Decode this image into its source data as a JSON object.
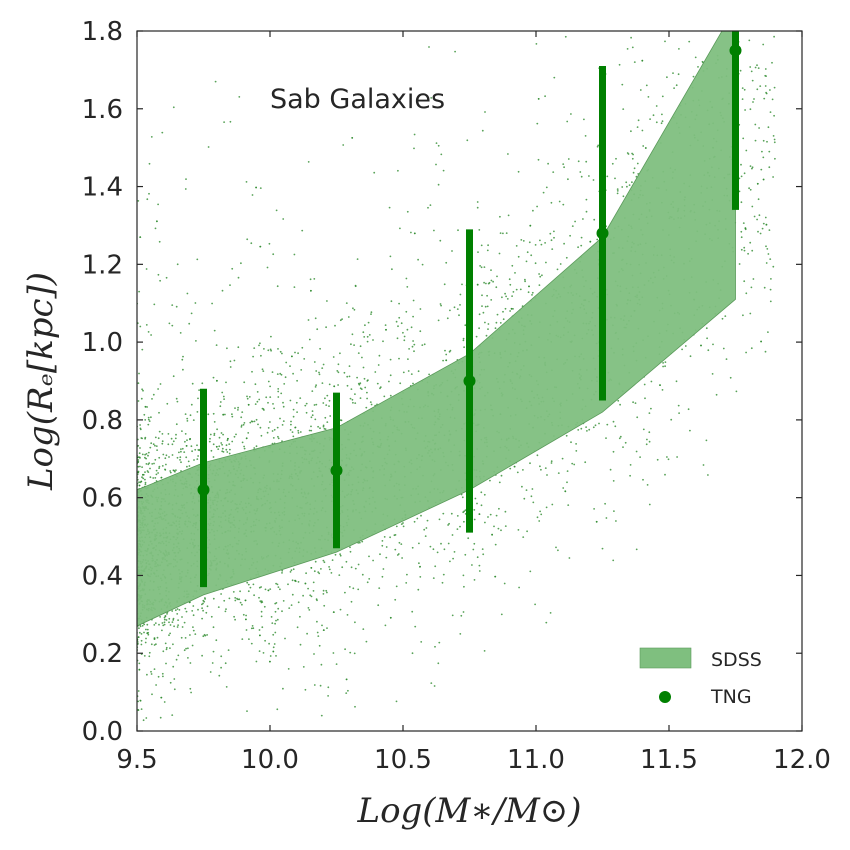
{
  "chart_data": {
    "type": "scatter",
    "title": "",
    "annotation": "Sab Galaxies",
    "xlabel": "Log(M∗/M⊙)",
    "ylabel": "Log(Rₑ[kpc])",
    "xlim": [
      9.5,
      12.0
    ],
    "ylim": [
      0.0,
      1.8
    ],
    "x_ticks": [
      "9.5",
      "10.0",
      "10.5",
      "11.0",
      "11.5",
      "12.0"
    ],
    "y_ticks": [
      "0.0",
      "0.2",
      "0.4",
      "0.6",
      "0.8",
      "1.0",
      "1.2",
      "1.4",
      "1.6",
      "1.8"
    ],
    "grid": false,
    "legend_position": "bottom-right",
    "colors": {
      "band_fill": "#7fbf7f",
      "band_edge": "#5a9a5a",
      "points": "#008000",
      "scatter_points": "#2e8b2e",
      "axes": "#262626"
    },
    "series": [
      {
        "name": "SDSS",
        "kind": "band",
        "x": [
          9.5,
          9.75,
          10.25,
          10.75,
          11.25,
          11.75
        ],
        "lower": [
          0.27,
          0.35,
          0.46,
          0.62,
          0.82,
          1.11
        ],
        "upper": [
          0.62,
          0.69,
          0.78,
          0.97,
          1.27,
          1.86
        ]
      },
      {
        "name": "TNG",
        "kind": "errorbar",
        "x": [
          9.75,
          10.25,
          10.75,
          11.25,
          11.75
        ],
        "y": [
          0.62,
          0.67,
          0.9,
          1.28,
          1.75
        ],
        "y_low": [
          0.37,
          0.47,
          0.51,
          0.85,
          1.34
        ],
        "y_high": [
          0.88,
          0.87,
          1.29,
          1.71,
          1.8
        ]
      },
      {
        "kind": "scatter",
        "count": 4200,
        "description_of_distribution": "dense cloud of simulated galaxy points following the band, widest at low mass"
      }
    ],
    "legend": [
      "SDSS",
      "TNG"
    ]
  }
}
